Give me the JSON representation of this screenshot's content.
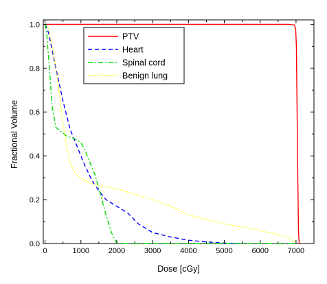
{
  "chart_data": {
    "type": "line",
    "title": "",
    "xlabel": "Dose [cGy]",
    "ylabel": "Fractional Volume",
    "xlim": [
      -50,
      7500
    ],
    "ylim": [
      0,
      1.02
    ],
    "xticks": [
      0,
      1000,
      2000,
      3000,
      4000,
      5000,
      6000,
      7000
    ],
    "xtick_labels": [
      "0",
      "1000",
      "2000",
      "3000",
      "4000",
      "5000",
      "6000",
      "7000"
    ],
    "yticks": [
      0.0,
      0.2,
      0.4,
      0.6,
      0.8,
      1.0
    ],
    "ytick_labels": [
      "0.0",
      "0.2",
      "0.4",
      "0.6",
      "0.8",
      "1.0"
    ],
    "grid": false,
    "legend_position": "top-center",
    "series": [
      {
        "name": "PTV",
        "color": "#ff0000",
        "style": "solid",
        "x": [
          0,
          1000,
          2000,
          3000,
          4000,
          5000,
          6000,
          6800,
          6950,
          6990,
          7010,
          7030,
          7050,
          7070,
          7090
        ],
        "y": [
          1.0,
          1.0,
          1.0,
          1.0,
          1.0,
          1.0,
          1.0,
          1.0,
          0.997,
          0.98,
          0.9,
          0.6,
          0.3,
          0.05,
          0.0
        ]
      },
      {
        "name": "Heart",
        "color": "#0000ff",
        "style": "dashed",
        "x": [
          0,
          100,
          300,
          500,
          700,
          900,
          1100,
          1300,
          1500,
          1700,
          2000,
          2300,
          2600,
          3000,
          3500,
          4000,
          4500,
          5000,
          5500
        ],
        "y": [
          1.0,
          0.96,
          0.8,
          0.65,
          0.52,
          0.44,
          0.36,
          0.29,
          0.24,
          0.2,
          0.17,
          0.14,
          0.09,
          0.05,
          0.03,
          0.015,
          0.007,
          0.002,
          0.0
        ]
      },
      {
        "name": "Spinal cord",
        "color": "#00dd00",
        "style": "dashdot",
        "x": [
          0,
          50,
          120,
          200,
          300,
          450,
          600,
          800,
          1000,
          1100,
          1250,
          1400,
          1550,
          1700,
          1850,
          2000,
          7000
        ],
        "y": [
          1.0,
          0.95,
          0.8,
          0.62,
          0.53,
          0.51,
          0.49,
          0.48,
          0.46,
          0.43,
          0.37,
          0.31,
          0.22,
          0.13,
          0.05,
          0.0,
          0.0
        ]
      },
      {
        "name": "Benign lung",
        "color": "#ffff00",
        "style": "dotted",
        "x": [
          0,
          100,
          200,
          300,
          400,
          500,
          600,
          700,
          800,
          900,
          1000,
          1200,
          1500,
          2000,
          2500,
          3000,
          3500,
          4000,
          4500,
          5000,
          5500,
          6000,
          6500,
          6800,
          6950,
          7000
        ],
        "y": [
          1.0,
          0.98,
          0.9,
          0.8,
          0.68,
          0.55,
          0.44,
          0.37,
          0.33,
          0.31,
          0.3,
          0.28,
          0.265,
          0.25,
          0.225,
          0.2,
          0.17,
          0.13,
          0.11,
          0.09,
          0.075,
          0.06,
          0.04,
          0.025,
          0.01,
          0.0
        ]
      }
    ]
  }
}
